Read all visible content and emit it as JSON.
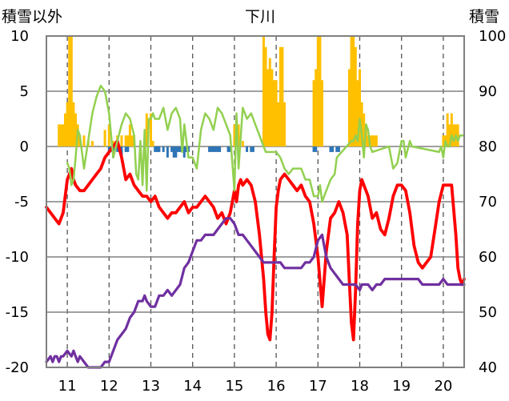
{
  "chart_data": {
    "type": "line",
    "title": "下川",
    "left_axis_label": "積雪以外",
    "right_axis_label": "積雪",
    "x_ticks": [
      "11",
      "12",
      "13",
      "14",
      "15",
      "16",
      "17",
      "18",
      "19",
      "20"
    ],
    "x_range": [
      10.5,
      20.5
    ],
    "left_ylim": [
      -20,
      10
    ],
    "left_y_ticks": [
      "10",
      "5",
      "0",
      "-5",
      "-10",
      "-15",
      "-20"
    ],
    "right_ylim": [
      40,
      100
    ],
    "right_y_ticks": [
      "100",
      "90",
      "80",
      "70",
      "60",
      "50",
      "40"
    ],
    "grid": "dashed vertical at each day",
    "colors": {
      "red": "#ff0000",
      "green": "#92d050",
      "purple": "#7030a0",
      "orange": "#ffc000",
      "blue": "#2e75b6",
      "frame": "#808080"
    },
    "series": [
      {
        "axis": "left",
        "color": "red",
        "x": [
          10.5,
          10.6,
          10.7,
          10.8,
          10.9,
          11.0,
          11.05,
          11.1,
          11.15,
          11.2,
          11.3,
          11.4,
          11.5,
          11.6,
          11.7,
          11.8,
          11.9,
          12.0,
          12.1,
          12.2,
          12.3,
          12.4,
          12.5,
          12.6,
          12.7,
          12.8,
          12.9,
          13.0,
          13.1,
          13.2,
          13.3,
          13.4,
          13.5,
          13.6,
          13.7,
          13.8,
          13.9,
          14.0,
          14.1,
          14.2,
          14.3,
          14.4,
          14.5,
          14.6,
          14.7,
          14.8,
          14.9,
          15.0,
          15.05,
          15.1,
          15.15,
          15.2,
          15.3,
          15.4,
          15.5,
          15.6,
          15.7,
          15.75,
          15.8,
          15.85,
          15.9,
          15.95,
          16.0,
          16.05,
          16.1,
          16.2,
          16.3,
          16.4,
          16.5,
          16.6,
          16.7,
          16.8,
          16.9,
          17.0,
          17.1,
          17.2,
          17.3,
          17.4,
          17.5,
          17.6,
          17.7,
          17.75,
          17.8,
          17.85,
          17.9,
          17.95,
          18.0,
          18.05,
          18.1,
          18.2,
          18.3,
          18.4,
          18.5,
          18.6,
          18.7,
          18.8,
          18.9,
          19.0,
          19.1,
          19.2,
          19.3,
          19.4,
          19.5,
          19.6,
          19.7,
          19.8,
          19.9,
          20.0,
          20.1,
          20.2,
          20.3,
          20.35,
          20.4,
          20.45,
          20.5
        ],
        "values": [
          -5.5,
          -6.0,
          -6.5,
          -7.0,
          -6.0,
          -3.0,
          -2.5,
          -2.0,
          -3.0,
          -3.5,
          -4.0,
          -4.0,
          -3.5,
          -3.0,
          -2.5,
          -2.0,
          -1.0,
          -0.5,
          0.0,
          0.5,
          -1.0,
          -3.0,
          -2.5,
          -3.5,
          -4.0,
          -4.5,
          -4.5,
          -5.0,
          -4.5,
          -5.5,
          -6.0,
          -6.5,
          -6.0,
          -6.0,
          -5.5,
          -5.0,
          -6.0,
          -5.5,
          -5.5,
          -5.0,
          -4.5,
          -5.0,
          -5.5,
          -6.5,
          -6.0,
          -7.0,
          -6.0,
          -4.0,
          -5.0,
          -3.5,
          -3.0,
          -3.5,
          -3.0,
          -3.5,
          -5.0,
          -8.0,
          -12.0,
          -15.0,
          -17.0,
          -17.5,
          -15.0,
          -10.0,
          -5.5,
          -4.0,
          -3.0,
          -2.5,
          -3.0,
          -3.5,
          -4.0,
          -3.5,
          -4.5,
          -5.0,
          -7.0,
          -10.0,
          -14.5,
          -9.5,
          -6.5,
          -6.0,
          -5.0,
          -6.0,
          -8.0,
          -12.0,
          -16.0,
          -17.5,
          -13.0,
          -7.0,
          -4.0,
          -3.0,
          -3.5,
          -4.5,
          -6.5,
          -6.0,
          -7.5,
          -8.0,
          -6.5,
          -4.5,
          -3.5,
          -3.5,
          -4.0,
          -6.0,
          -9.0,
          -10.5,
          -11.0,
          -10.5,
          -10.0,
          -7.5,
          -5.0,
          -3.5,
          -3.5,
          -3.5,
          -8.0,
          -11.0,
          -12.0,
          -12.5,
          -12.0
        ]
      },
      {
        "axis": "left",
        "color": "green",
        "x": [
          11.0,
          11.05,
          11.1,
          11.15,
          11.2,
          11.25,
          11.3,
          11.4,
          11.5,
          11.6,
          11.7,
          11.8,
          11.9,
          12.0,
          12.05,
          12.1,
          12.2,
          12.3,
          12.4,
          12.5,
          12.6,
          12.65,
          12.7,
          12.75,
          12.8,
          12.85,
          12.9,
          12.95,
          13.0,
          13.05,
          13.1,
          13.2,
          13.3,
          13.4,
          13.5,
          13.6,
          13.7,
          13.75,
          13.8,
          13.9,
          14.0,
          14.05,
          14.1,
          14.2,
          14.3,
          14.4,
          14.5,
          14.6,
          14.7,
          14.8,
          14.9,
          15.0,
          15.05,
          15.1,
          15.2,
          15.3,
          15.4,
          15.5,
          15.6,
          15.7,
          15.75,
          16.0,
          16.1,
          16.2,
          16.3,
          16.4,
          16.5,
          16.6,
          16.7,
          16.8,
          16.9,
          17.0,
          17.05,
          17.1,
          17.2,
          17.3,
          17.4,
          17.45,
          17.8,
          17.85,
          17.9,
          17.95,
          18.0,
          18.05,
          18.1,
          18.15,
          18.2,
          18.25,
          18.3,
          18.7,
          18.8,
          18.9,
          19.0,
          19.05,
          19.1,
          19.2,
          19.25,
          19.9,
          19.95,
          20.0,
          20.05,
          20.1,
          20.15,
          20.2,
          20.25,
          20.3,
          20.35,
          20.4,
          20.45,
          20.5
        ],
        "values": [
          -1.5,
          -2.0,
          -3.5,
          -3.0,
          -1.0,
          1.5,
          1.0,
          -2.0,
          0.5,
          3.0,
          4.5,
          5.5,
          5.0,
          3.0,
          1.0,
          -1.0,
          0.5,
          2.0,
          3.0,
          2.5,
          1.0,
          -2.5,
          -3.0,
          0.5,
          -3.5,
          1.5,
          -4.0,
          2.5,
          2.5,
          3.0,
          2.5,
          2.5,
          3.5,
          1.5,
          3.0,
          3.5,
          2.5,
          -0.5,
          2.0,
          -1.0,
          -1.0,
          -1.5,
          -2.0,
          1.5,
          3.0,
          2.5,
          1.5,
          3.5,
          3.0,
          2.0,
          1.0,
          -4.0,
          3.0,
          -2.0,
          3.5,
          2.5,
          3.0,
          2.0,
          1.0,
          0.0,
          -0.5,
          -0.5,
          -1.0,
          -2.0,
          -2.5,
          -2.0,
          -2.0,
          -2.0,
          -3.0,
          -3.0,
          -4.5,
          -4.5,
          -3.5,
          -5.0,
          -4.0,
          -3.0,
          -2.5,
          -1.0,
          0.5,
          0.5,
          1.0,
          0.5,
          2.5,
          1.0,
          -1.0,
          2.0,
          1.5,
          0.0,
          -0.5,
          0.0,
          -2.0,
          -1.5,
          0.5,
          0.5,
          -1.0,
          0.5,
          0.0,
          -0.5,
          0.0,
          -1.0,
          0.5,
          0.0,
          0.0,
          1.0,
          0.5,
          1.0,
          0.5,
          1.0,
          1.0,
          1.0
        ]
      },
      {
        "axis": "right",
        "color": "purple",
        "x": [
          10.5,
          10.6,
          10.65,
          10.7,
          10.75,
          10.8,
          10.85,
          10.9,
          11.0,
          11.1,
          11.15,
          11.2,
          11.25,
          11.3,
          11.4,
          11.5,
          11.6,
          11.7,
          11.8,
          11.9,
          12.0,
          12.05,
          12.1,
          12.15,
          12.2,
          12.3,
          12.4,
          12.5,
          12.6,
          12.7,
          12.8,
          12.85,
          12.9,
          13.0,
          13.1,
          13.2,
          13.3,
          13.4,
          13.5,
          13.6,
          13.7,
          13.8,
          13.9,
          14.0,
          14.1,
          14.2,
          14.3,
          14.4,
          14.5,
          14.6,
          14.7,
          14.8,
          14.9,
          15.0,
          15.1,
          15.2,
          15.3,
          15.4,
          15.5,
          15.6,
          15.7,
          15.8,
          15.9,
          16.0,
          16.1,
          16.2,
          16.3,
          16.4,
          16.5,
          16.6,
          16.7,
          16.8,
          16.9,
          17.0,
          17.1,
          17.2,
          17.3,
          17.4,
          17.5,
          17.6,
          17.7,
          17.8,
          17.9,
          18.0,
          18.05,
          18.1,
          18.2,
          18.3,
          18.4,
          18.5,
          18.6,
          18.7,
          18.8,
          18.9,
          19.0,
          19.1,
          19.2,
          19.3,
          19.4,
          19.5,
          19.6,
          19.7,
          19.8,
          19.9,
          20.0,
          20.1,
          20.2,
          20.3,
          20.4,
          20.5
        ],
        "values": [
          41,
          42,
          41,
          42,
          42,
          41,
          42,
          42,
          43,
          42,
          43,
          42,
          41,
          42,
          41,
          40,
          40,
          40,
          40,
          41,
          41,
          42,
          43,
          44,
          45,
          46,
          47,
          49,
          50,
          52,
          52,
          53,
          52,
          51,
          51,
          53,
          53,
          54,
          53,
          54,
          55,
          58,
          59,
          61,
          63,
          63,
          64,
          64,
          64,
          65,
          66,
          67,
          67,
          66,
          64,
          64,
          63,
          62,
          61,
          60,
          59,
          59,
          59,
          59,
          59,
          58,
          58,
          58,
          58,
          58,
          59,
          59,
          60,
          63,
          64,
          60,
          58,
          57,
          56,
          55,
          55,
          55,
          55,
          54,
          55,
          55,
          55,
          54,
          55,
          55,
          56,
          56,
          56,
          56,
          56,
          56,
          56,
          56,
          56,
          55,
          55,
          55,
          55,
          55,
          56,
          55,
          55,
          55,
          55,
          55
        ]
      },
      {
        "axis": "left",
        "type": "bar",
        "color": "orange",
        "x": [
          10.8,
          10.85,
          10.9,
          10.95,
          11.0,
          11.05,
          11.1,
          11.15,
          11.2,
          11.25,
          11.3,
          11.4,
          11.5,
          11.6,
          11.9,
          12.0,
          12.1,
          12.2,
          12.3,
          12.4,
          12.45,
          12.5,
          12.55,
          12.6,
          12.9,
          13.0,
          13.05,
          15.0,
          15.05,
          15.1,
          15.2,
          15.7,
          15.75,
          15.8,
          15.85,
          15.9,
          15.95,
          16.0,
          16.05,
          16.1,
          16.15,
          16.2,
          16.9,
          16.95,
          17.0,
          17.05,
          17.1,
          17.75,
          17.8,
          17.85,
          17.9,
          17.95,
          18.0,
          18.05,
          18.1,
          18.15,
          18.2,
          18.25,
          18.3,
          18.35,
          18.4,
          20.0,
          20.05,
          20.1,
          20.15,
          20.2,
          20.25,
          20.3,
          20.35
        ],
        "values": [
          2,
          2,
          2,
          3,
          4,
          10,
          10,
          4,
          3,
          2,
          1,
          1,
          0.5,
          0.5,
          1.5,
          2,
          0.5,
          1,
          1,
          1,
          1,
          2,
          1,
          1,
          3,
          3,
          0.5,
          2,
          0.5,
          2,
          0.5,
          10,
          9,
          7,
          8,
          7,
          6,
          6,
          4,
          9,
          9,
          4,
          6,
          7,
          10,
          10,
          6,
          7,
          10,
          10,
          9,
          6,
          7,
          4,
          3,
          2,
          1,
          1,
          1,
          1,
          1,
          1,
          1,
          3,
          2,
          3,
          2,
          2,
          2
        ]
      },
      {
        "axis": "left",
        "type": "bar",
        "color": "blue",
        "x": [
          12.0,
          12.05,
          12.1,
          12.2,
          12.3,
          12.4,
          12.45,
          13.1,
          13.15,
          13.2,
          13.3,
          13.4,
          13.5,
          13.55,
          13.6,
          13.65,
          13.7,
          13.75,
          13.8,
          13.85,
          13.9,
          14.4,
          14.45,
          14.5,
          14.55,
          14.6,
          14.65,
          14.85,
          14.9,
          15.3,
          15.4,
          15.45,
          16.9,
          16.95,
          17.3,
          17.35,
          17.45,
          17.5
        ],
        "values": [
          -0.5,
          -0.5,
          -1.0,
          -0.5,
          -1.0,
          -0.5,
          -0.5,
          -0.5,
          -0.5,
          -0.5,
          -0.5,
          -1.0,
          -0.5,
          -1.0,
          -1.0,
          -0.5,
          -0.5,
          -0.5,
          -1.0,
          -0.5,
          -0.5,
          -0.5,
          -0.5,
          -0.5,
          -0.5,
          -0.5,
          -0.5,
          -0.5,
          -0.5,
          -0.5,
          -0.5,
          -0.5,
          -0.5,
          -0.5,
          -0.5,
          -0.5,
          -0.5,
          -0.5
        ]
      }
    ]
  }
}
